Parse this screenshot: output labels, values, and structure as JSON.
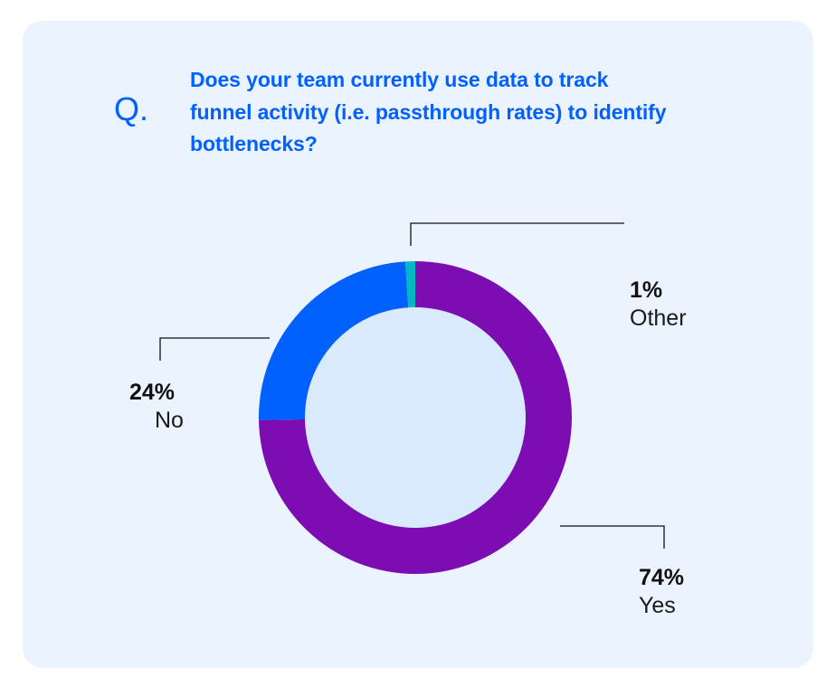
{
  "card": {
    "q_mark": "Q.",
    "question_lines": [
      "Does your team currently use data to track",
      "funnel activity (i.e. passthrough rates) to identify",
      "bottlenecks?"
    ]
  },
  "colors": {
    "card_bg": "#EAF3FE",
    "accent_blue": "#0061FE",
    "yes": "#7B0DB3",
    "no": "#0061FE",
    "other": "#00B7C2",
    "donut_hole": "#DAEAFD"
  },
  "labels": {
    "other": {
      "pct": "1%",
      "name": "Other"
    },
    "no": {
      "pct": "24%",
      "name": "No"
    },
    "yes": {
      "pct": "74%",
      "name": "Yes"
    }
  },
  "chart_data": {
    "type": "pie",
    "variant": "donut",
    "title": "Does your team currently use data to track funnel activity (i.e. passthrough rates) to identify bottlenecks?",
    "categories": [
      "Yes",
      "No",
      "Other"
    ],
    "values": [
      74,
      24,
      1
    ],
    "unit": "%",
    "colors": [
      "#7B0DB3",
      "#0061FE",
      "#00B7C2"
    ],
    "start_angle": "12 o'clock, clockwise",
    "legend": "leader-line callouts"
  }
}
